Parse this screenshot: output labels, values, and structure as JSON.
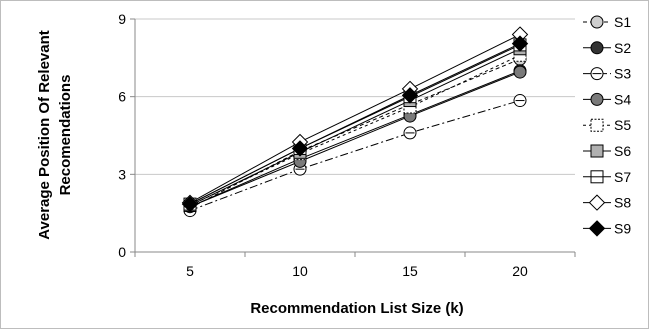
{
  "chart_data": {
    "type": "line",
    "title": "",
    "xlabel": "Recommendation List Size (k)",
    "ylabel_lines": [
      "Average Position Of Relevant",
      "Recomendations"
    ],
    "x": [
      5,
      10,
      15,
      20
    ],
    "x_ticks": [
      "5",
      "10",
      "15",
      "20"
    ],
    "ylim": [
      0,
      9
    ],
    "y_ticks": [
      "0",
      "3",
      "6",
      "9"
    ],
    "grid": "horizontal",
    "legend_position": "right",
    "series": [
      {
        "name": "S1",
        "values": [
          1.7,
          3.9,
          5.7,
          7.45
        ],
        "marker": "circle",
        "fill": "#cfcfcf",
        "dash": "4 3"
      },
      {
        "name": "S2",
        "values": [
          1.75,
          3.6,
          5.3,
          7.0
        ],
        "marker": "circle",
        "fill": "#333333",
        "dash": ""
      },
      {
        "name": "S3",
        "values": [
          1.6,
          3.2,
          4.6,
          5.85
        ],
        "marker": "circle-bar",
        "fill": "#ffffff",
        "dash": "8 3 2 3"
      },
      {
        "name": "S4",
        "values": [
          1.75,
          3.5,
          5.25,
          6.95
        ],
        "marker": "circle",
        "fill": "#7a7a7a",
        "dash": ""
      },
      {
        "name": "S5",
        "values": [
          1.8,
          3.8,
          5.6,
          7.6
        ],
        "marker": "square-dot",
        "fill": "#ffffff",
        "dash": "3 3"
      },
      {
        "name": "S6",
        "values": [
          1.8,
          3.85,
          5.85,
          7.85
        ],
        "marker": "square",
        "fill": "#b0b0b0",
        "dash": ""
      },
      {
        "name": "S7",
        "values": [
          1.85,
          4.0,
          6.0,
          8.0
        ],
        "marker": "square-bar",
        "fill": "#ffffff",
        "dash": ""
      },
      {
        "name": "S8",
        "values": [
          1.9,
          4.25,
          6.3,
          8.4
        ],
        "marker": "diamond",
        "fill": "#ffffff",
        "dash": ""
      },
      {
        "name": "S9",
        "values": [
          1.85,
          4.0,
          6.05,
          8.05
        ],
        "marker": "diamond",
        "fill": "#000000",
        "dash": ""
      }
    ]
  }
}
